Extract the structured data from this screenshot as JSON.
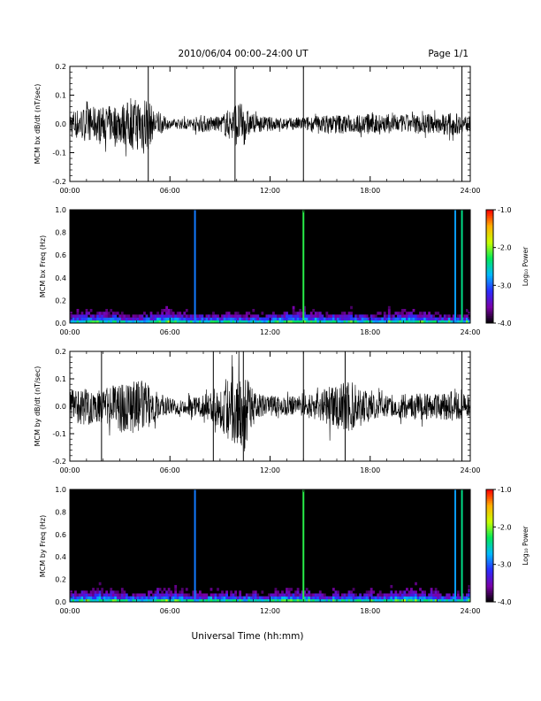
{
  "header": {
    "title": "2010/06/04  00:00–24:00 UT",
    "page": "Page 1/1"
  },
  "xaxis": {
    "label": "Universal Time (hh:mm)",
    "ticks": [
      "00:00",
      "06:00",
      "12:00",
      "18:00",
      "24:00"
    ],
    "range_hours": [
      0,
      24
    ]
  },
  "colorbar": {
    "label": "Log₁₀ Power",
    "ticks": [
      "-1.0",
      "-2.0",
      "-3.0",
      "-4.0"
    ],
    "range": [
      -4.0,
      -1.0
    ],
    "colors": [
      "#000000",
      "#7a00a8",
      "#2a2cff",
      "#00b8ff",
      "#00e85a",
      "#c8ff00",
      "#ffb000",
      "#ff0000"
    ]
  },
  "chart_data": [
    {
      "type": "line",
      "ylabel": "MCM bx dB/dt (nT/sec)",
      "ylim": [
        -0.2,
        0.2
      ],
      "yticks": [
        "0.2",
        "0.1",
        "0.0",
        "-0.1",
        "-0.2"
      ],
      "envelope": {
        "x_hours": [
          0,
          1,
          2,
          3,
          4,
          4.5,
          5,
          6,
          7,
          8,
          9,
          10,
          10.3,
          11,
          12,
          13,
          14,
          15,
          16,
          17,
          18,
          19,
          20,
          21,
          22,
          23,
          24
        ],
        "amplitude": [
          0.05,
          0.06,
          0.06,
          0.07,
          0.09,
          0.12,
          0.05,
          0.015,
          0.02,
          0.03,
          0.025,
          0.08,
          0.07,
          0.03,
          0.025,
          0.02,
          0.025,
          0.03,
          0.035,
          0.03,
          0.04,
          0.035,
          0.03,
          0.035,
          0.035,
          0.04,
          0.025
        ]
      },
      "spikes_hours": [
        4.7,
        9.9,
        14.0,
        23.5
      ]
    },
    {
      "type": "heatmap",
      "ylabel": "MCM bx Freq (Hz)",
      "ylim": [
        0.0,
        1.0
      ],
      "yticks": [
        "1.0",
        "0.8",
        "0.6",
        "0.4",
        "0.2",
        "0.0"
      ],
      "value_range": [
        -4.0,
        -1.0
      ],
      "vertical_lines": [
        {
          "x_hours": 7.5,
          "value": -2.9
        },
        {
          "x_hours": 14.0,
          "value": -2.2
        },
        {
          "x_hours": 23.1,
          "value": -2.8
        },
        {
          "x_hours": 23.5,
          "value": -2.4
        }
      ]
    },
    {
      "type": "line",
      "ylabel": "MCM by dB/dt (nT/sec)",
      "ylim": [
        -0.2,
        0.2
      ],
      "yticks": [
        "0.2",
        "0.1",
        "0.0",
        "-0.1",
        "-0.2"
      ],
      "envelope": {
        "x_hours": [
          0,
          1,
          2,
          3,
          4,
          4.5,
          5,
          6,
          7,
          8,
          9,
          10,
          10.3,
          11,
          12,
          13,
          14,
          15,
          16,
          17,
          18,
          19,
          20,
          21,
          22,
          23,
          24
        ],
        "amplitude": [
          0.06,
          0.07,
          0.06,
          0.09,
          0.1,
          0.09,
          0.06,
          0.03,
          0.03,
          0.04,
          0.08,
          0.15,
          0.2,
          0.05,
          0.04,
          0.035,
          0.04,
          0.05,
          0.1,
          0.09,
          0.05,
          0.04,
          0.045,
          0.05,
          0.05,
          0.055,
          0.04
        ]
      },
      "spikes_hours": [
        1.9,
        8.6,
        10.4,
        14.0,
        16.5,
        23.5
      ]
    },
    {
      "type": "heatmap",
      "ylabel": "MCM by Freq (Hz)",
      "ylim": [
        0.0,
        1.0
      ],
      "yticks": [
        "1.0",
        "0.8",
        "0.6",
        "0.4",
        "0.2",
        "0.0"
      ],
      "value_range": [
        -4.0,
        -1.0
      ],
      "vertical_lines": [
        {
          "x_hours": 7.5,
          "value": -2.9
        },
        {
          "x_hours": 14.0,
          "value": -2.2
        },
        {
          "x_hours": 23.1,
          "value": -2.8
        },
        {
          "x_hours": 23.5,
          "value": -2.4
        }
      ]
    }
  ]
}
